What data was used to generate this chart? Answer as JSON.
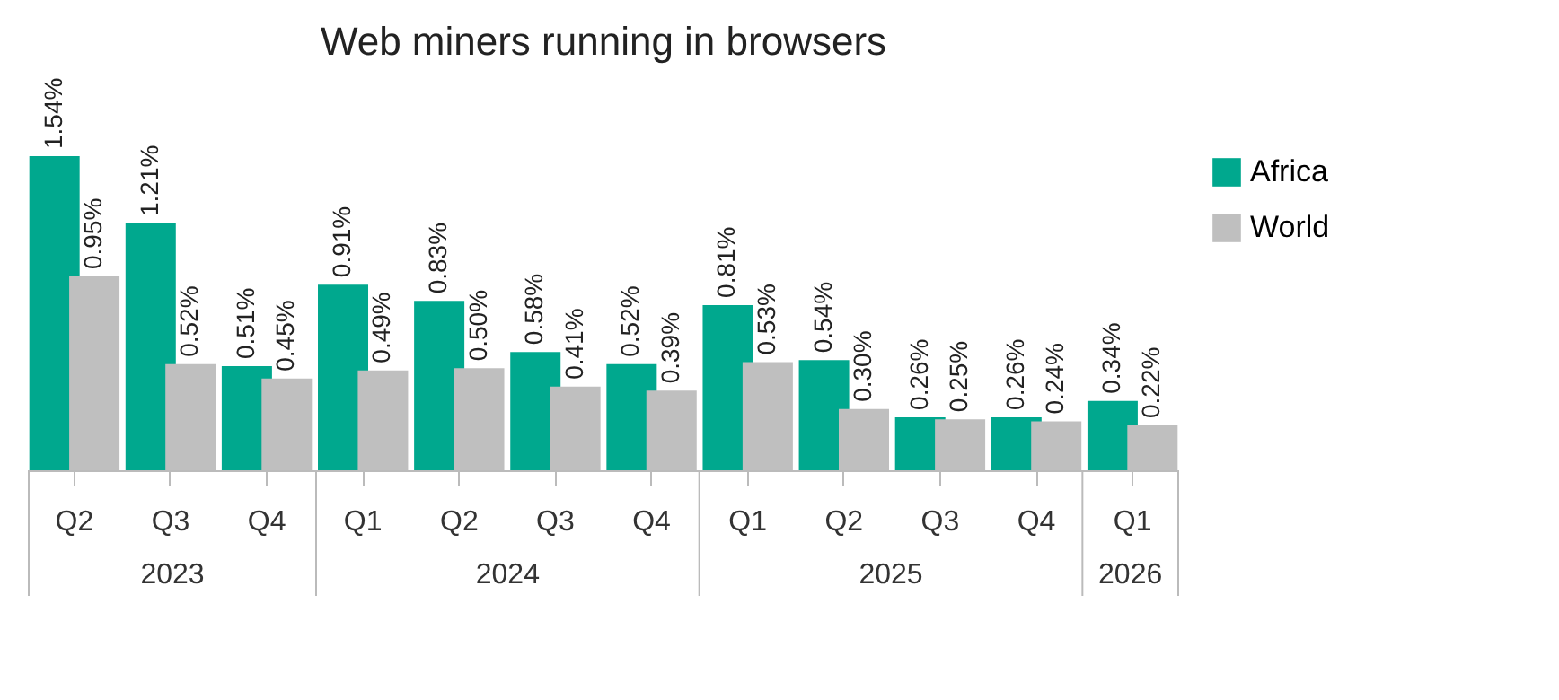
{
  "chart_data": {
    "type": "bar",
    "title": "Web miners running in browsers",
    "categories": [
      "Q2",
      "Q3",
      "Q4",
      "Q1",
      "Q2",
      "Q3",
      "Q4",
      "Q1",
      "Q2",
      "Q3",
      "Q4",
      "Q1"
    ],
    "annotations": [
      "2023",
      "2024",
      "2025",
      "2026"
    ],
    "series": [
      {
        "name": "Africa",
        "color": "#00a88e",
        "values": [
          1.54,
          1.21,
          0.51,
          0.91,
          0.83,
          0.58,
          0.52,
          0.81,
          0.54,
          0.26,
          0.26,
          0.34
        ],
        "value_labels": [
          "1.54%",
          "1.21%",
          "0.51%",
          "0.91%",
          "0.83%",
          "0.58%",
          "0.52%",
          "0.81%",
          "0.54%",
          "0.26%",
          "0.26%",
          "0.34%"
        ]
      },
      {
        "name": "World",
        "color": "#bfbfbf",
        "values": [
          0.95,
          0.52,
          0.45,
          0.49,
          0.5,
          0.41,
          0.39,
          0.53,
          0.3,
          0.25,
          0.24,
          0.22
        ],
        "value_labels": [
          "0.95%",
          "0.52%",
          "0.45%",
          "0.49%",
          "0.50%",
          "0.41%",
          "0.39%",
          "0.53%",
          "0.30%",
          "0.25%",
          "0.24%",
          "0.22%"
        ]
      }
    ],
    "legend": "right",
    "grid": false
  }
}
